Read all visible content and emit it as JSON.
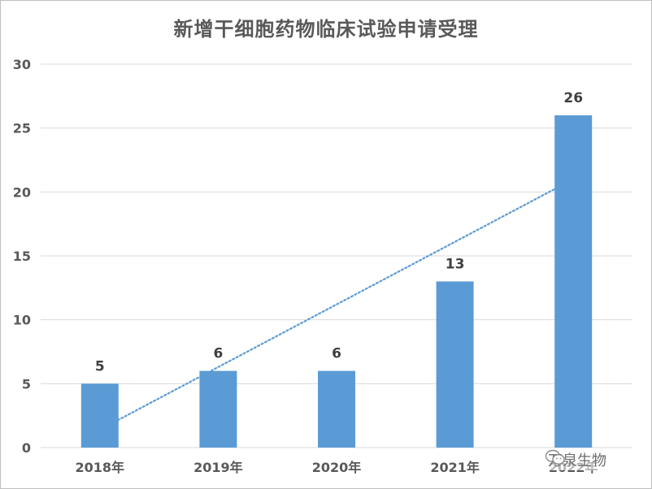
{
  "chart_data": {
    "type": "bar",
    "title": "新增干细胞药物临床试验申请受理",
    "categories": [
      "2018年",
      "2019年",
      "2020年",
      "2021年",
      "2022年"
    ],
    "values": [
      5,
      6,
      6,
      13,
      26
    ],
    "ylim": [
      0,
      30
    ],
    "yticks": [
      0,
      5,
      10,
      15,
      20,
      25,
      30
    ],
    "grid": true,
    "bar_color": "#5b9bd5",
    "trendline": {
      "type": "linear",
      "style": "dotted",
      "color": "#5b9bd5"
    }
  },
  "watermark": {
    "text": "万泉生物",
    "icon": "wechat-icon"
  }
}
